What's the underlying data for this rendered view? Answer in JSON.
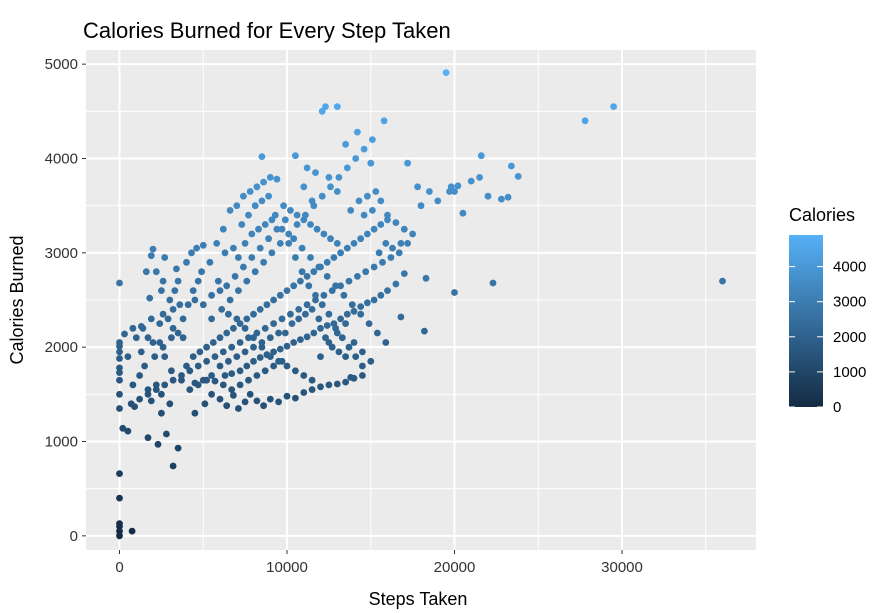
{
  "chart_data": {
    "type": "scatter",
    "title": "Calories Burned for Every Step Taken",
    "xlabel": "Steps Taken",
    "ylabel": "Calories Burned",
    "xlim": [
      -2000,
      38000
    ],
    "ylim": [
      -150,
      5150
    ],
    "x_ticks": [
      0,
      10000,
      20000,
      30000
    ],
    "y_ticks": [
      0,
      1000,
      2000,
      3000,
      4000,
      5000
    ],
    "x_tick_labels": [
      "0",
      "10000",
      "20000",
      "30000"
    ],
    "y_tick_labels": [
      "0",
      "1000",
      "2000",
      "3000",
      "4000",
      "5000"
    ],
    "grid": true,
    "legend": {
      "title": "Calories",
      "placement": "right",
      "range": [
        0,
        4900
      ],
      "ticks": [
        0,
        1000,
        2000,
        3000,
        4000
      ],
      "tick_labels": [
        "0",
        "1000",
        "2000",
        "3000",
        "4000"
      ],
      "color_low": "#132B43",
      "color_high": "#56B1F7"
    },
    "colors": {
      "panel_background": "#EBEBEB",
      "grid": "#FFFFFF"
    },
    "points": [
      [
        0,
        0
      ],
      [
        0,
        50
      ],
      [
        0,
        100
      ],
      [
        0,
        130
      ],
      [
        0,
        400
      ],
      [
        0,
        660
      ],
      [
        0,
        1350
      ],
      [
        0,
        1500
      ],
      [
        0,
        1650
      ],
      [
        0,
        1730
      ],
      [
        0,
        1780
      ],
      [
        0,
        1880
      ],
      [
        0,
        1950
      ],
      [
        0,
        2010
      ],
      [
        0,
        2050
      ],
      [
        0,
        2680
      ],
      [
        750,
        50
      ],
      [
        200,
        1140
      ],
      [
        500,
        1110
      ],
      [
        900,
        1370
      ],
      [
        500,
        1900
      ],
      [
        300,
        2140
      ],
      [
        800,
        2200
      ],
      [
        1300,
        2220
      ],
      [
        1700,
        2100
      ],
      [
        1400,
        2200
      ],
      [
        2000,
        3040
      ],
      [
        1900,
        2970
      ],
      [
        2700,
        2950
      ],
      [
        1800,
        2520
      ],
      [
        1600,
        2800
      ],
      [
        3400,
        2830
      ],
      [
        3500,
        2700
      ],
      [
        2500,
        2600
      ],
      [
        2600,
        2350
      ],
      [
        1900,
        2300
      ],
      [
        3200,
        2400
      ],
      [
        2400,
        2250
      ],
      [
        2000,
        2050
      ],
      [
        2600,
        2000
      ],
      [
        3200,
        2200
      ],
      [
        3800,
        2100
      ],
      [
        2700,
        1900
      ],
      [
        3100,
        1750
      ],
      [
        3700,
        1650
      ],
      [
        2200,
        1600
      ],
      [
        1700,
        1550
      ],
      [
        2500,
        1500
      ],
      [
        3000,
        1400
      ],
      [
        1900,
        1430
      ],
      [
        2500,
        1300
      ],
      [
        1700,
        1040
      ],
      [
        2800,
        1080
      ],
      [
        2300,
        970
      ],
      [
        3500,
        930
      ],
      [
        3200,
        740
      ],
      [
        4500,
        1300
      ],
      [
        5100,
        1400
      ],
      [
        5500,
        1500
      ],
      [
        6000,
        1450
      ],
      [
        6400,
        1380
      ],
      [
        6800,
        1490
      ],
      [
        7100,
        1350
      ],
      [
        7500,
        1420
      ],
      [
        7800,
        1500
      ],
      [
        8200,
        1430
      ],
      [
        8600,
        1380
      ],
      [
        9000,
        1450
      ],
      [
        9500,
        1420
      ],
      [
        10000,
        1480
      ],
      [
        10500,
        1460
      ],
      [
        11000,
        1520
      ],
      [
        11500,
        1550
      ],
      [
        12000,
        1580
      ],
      [
        12500,
        1600
      ],
      [
        13000,
        1610
      ],
      [
        13500,
        1630
      ],
      [
        14000,
        1670
      ],
      [
        14500,
        1700
      ],
      [
        13800,
        1680
      ],
      [
        4200,
        1550
      ],
      [
        4700,
        1600
      ],
      [
        5200,
        1650
      ],
      [
        5700,
        1640
      ],
      [
        6300,
        1700
      ],
      [
        6700,
        1720
      ],
      [
        7200,
        1750
      ],
      [
        7600,
        1800
      ],
      [
        8000,
        1850
      ],
      [
        8400,
        1890
      ],
      [
        8800,
        1920
      ],
      [
        9200,
        1950
      ],
      [
        9600,
        1980
      ],
      [
        10000,
        2010
      ],
      [
        10400,
        2050
      ],
      [
        10800,
        2080
      ],
      [
        11200,
        2110
      ],
      [
        11600,
        2150
      ],
      [
        12000,
        2200
      ],
      [
        12400,
        2230
      ],
      [
        12800,
        2250
      ],
      [
        13200,
        2300
      ],
      [
        13600,
        2350
      ],
      [
        14000,
        2380
      ],
      [
        14400,
        2430
      ],
      [
        14800,
        2470
      ],
      [
        15200,
        2500
      ],
      [
        15600,
        2550
      ],
      [
        16000,
        2600
      ],
      [
        16500,
        2670
      ],
      [
        17000,
        2780
      ],
      [
        16800,
        2320
      ],
      [
        18200,
        2170
      ],
      [
        18300,
        2730
      ],
      [
        20000,
        2580
      ],
      [
        22300,
        2680
      ],
      [
        36000,
        2700
      ],
      [
        4000,
        1800
      ],
      [
        4400,
        1900
      ],
      [
        4800,
        1950
      ],
      [
        5200,
        2000
      ],
      [
        5600,
        2050
      ],
      [
        6000,
        2100
      ],
      [
        6400,
        2150
      ],
      [
        6800,
        2200
      ],
      [
        7200,
        2250
      ],
      [
        7600,
        2300
      ],
      [
        8000,
        2350
      ],
      [
        8400,
        2400
      ],
      [
        8800,
        2450
      ],
      [
        9200,
        2500
      ],
      [
        9600,
        2550
      ],
      [
        10000,
        2600
      ],
      [
        10400,
        2650
      ],
      [
        10800,
        2700
      ],
      [
        11200,
        2750
      ],
      [
        11600,
        2800
      ],
      [
        12000,
        2850
      ],
      [
        12400,
        2900
      ],
      [
        12800,
        2950
      ],
      [
        13200,
        3000
      ],
      [
        13600,
        3050
      ],
      [
        14000,
        3100
      ],
      [
        14400,
        3150
      ],
      [
        14800,
        3200
      ],
      [
        15200,
        3250
      ],
      [
        15600,
        3300
      ],
      [
        16000,
        3350
      ],
      [
        5000,
        3080
      ],
      [
        5800,
        3100
      ],
      [
        6200,
        3250
      ],
      [
        6600,
        3450
      ],
      [
        7000,
        3500
      ],
      [
        7400,
        3600
      ],
      [
        7800,
        3650
      ],
      [
        8200,
        3700
      ],
      [
        8600,
        3750
      ],
      [
        9000,
        3800
      ],
      [
        9400,
        3780
      ],
      [
        9800,
        3500
      ],
      [
        10200,
        3450
      ],
      [
        10600,
        3400
      ],
      [
        11000,
        3350
      ],
      [
        11400,
        3300
      ],
      [
        11800,
        3250
      ],
      [
        12200,
        3200
      ],
      [
        12600,
        3150
      ],
      [
        13000,
        3100
      ],
      [
        8500,
        4020
      ],
      [
        10500,
        4030
      ],
      [
        11200,
        3900
      ],
      [
        11700,
        3850
      ],
      [
        12100,
        4500
      ],
      [
        12300,
        4550
      ],
      [
        13000,
        4550
      ],
      [
        13500,
        4150
      ],
      [
        14200,
        4280
      ],
      [
        15000,
        3950
      ],
      [
        15800,
        4400
      ],
      [
        17200,
        3950
      ],
      [
        19500,
        4910
      ],
      [
        27800,
        4400
      ],
      [
        29500,
        4550
      ],
      [
        21600,
        4030
      ],
      [
        23400,
        3920
      ],
      [
        23800,
        3810
      ],
      [
        22000,
        3600
      ],
      [
        22800,
        3570
      ],
      [
        23200,
        3590
      ],
      [
        20000,
        3650
      ],
      [
        20500,
        3420
      ],
      [
        19000,
        3550
      ],
      [
        19700,
        3650
      ],
      [
        19800,
        3700
      ],
      [
        20200,
        3710
      ],
      [
        21000,
        3760
      ],
      [
        21500,
        3800
      ],
      [
        17800,
        3700
      ],
      [
        18500,
        3650
      ],
      [
        18000,
        3500
      ],
      [
        16000,
        3400
      ],
      [
        16500,
        3320
      ],
      [
        17000,
        3250
      ],
      [
        17500,
        3200
      ],
      [
        17200,
        3100
      ],
      [
        16700,
        3000
      ],
      [
        16200,
        2950
      ],
      [
        15700,
        2900
      ],
      [
        15200,
        2850
      ],
      [
        14700,
        2800
      ],
      [
        14200,
        2750
      ],
      [
        13700,
        2700
      ],
      [
        13200,
        2650
      ],
      [
        12700,
        2600
      ],
      [
        12200,
        2550
      ],
      [
        11700,
        2500
      ],
      [
        11200,
        2450
      ],
      [
        10700,
        2400
      ],
      [
        10200,
        2350
      ],
      [
        9700,
        2300
      ],
      [
        9200,
        2250
      ],
      [
        8700,
        2200
      ],
      [
        8200,
        2150
      ],
      [
        7700,
        2100
      ],
      [
        7200,
        2050
      ],
      [
        6700,
        2000
      ],
      [
        6200,
        1950
      ],
      [
        5700,
        1900
      ],
      [
        5200,
        1850
      ],
      [
        4700,
        1800
      ],
      [
        4200,
        1750
      ],
      [
        3700,
        1700
      ],
      [
        3200,
        1650
      ],
      [
        2700,
        1600
      ],
      [
        2200,
        1550
      ],
      [
        1700,
        1500
      ],
      [
        1200,
        1450
      ],
      [
        700,
        1400
      ],
      [
        5500,
        2300
      ],
      [
        6100,
        2400
      ],
      [
        6600,
        2500
      ],
      [
        7100,
        2600
      ],
      [
        7600,
        2700
      ],
      [
        8100,
        2800
      ],
      [
        8600,
        2900
      ],
      [
        9100,
        3000
      ],
      [
        9600,
        3100
      ],
      [
        10100,
        3200
      ],
      [
        10600,
        3300
      ],
      [
        11100,
        3400
      ],
      [
        11600,
        3500
      ],
      [
        12100,
        3600
      ],
      [
        12600,
        3700
      ],
      [
        13100,
        3800
      ],
      [
        13600,
        3900
      ],
      [
        14100,
        4000
      ],
      [
        14600,
        4100
      ],
      [
        15100,
        4200
      ],
      [
        4900,
        2800
      ],
      [
        5400,
        2900
      ],
      [
        5900,
        2700
      ],
      [
        6400,
        2650
      ],
      [
        6900,
        2750
      ],
      [
        7400,
        2850
      ],
      [
        7900,
        2950
      ],
      [
        8400,
        3050
      ],
      [
        8900,
        3150
      ],
      [
        9400,
        3250
      ],
      [
        9900,
        3350
      ],
      [
        10400,
        3150
      ],
      [
        10900,
        3050
      ],
      [
        11400,
        2950
      ],
      [
        11900,
        2850
      ],
      [
        12400,
        2750
      ],
      [
        12900,
        2650
      ],
      [
        13400,
        2550
      ],
      [
        13900,
        2450
      ],
      [
        14400,
        2350
      ],
      [
        14900,
        2250
      ],
      [
        15400,
        2150
      ],
      [
        15900,
        2050
      ],
      [
        4500,
        2500
      ],
      [
        5000,
        2450
      ],
      [
        5500,
        2550
      ],
      [
        6000,
        2600
      ],
      [
        6500,
        2350
      ],
      [
        7000,
        2300
      ],
      [
        7500,
        2200
      ],
      [
        8000,
        2100
      ],
      [
        8500,
        2000
      ],
      [
        9000,
        1900
      ],
      [
        9500,
        1850
      ],
      [
        10000,
        1800
      ],
      [
        10500,
        1750
      ],
      [
        11000,
        1700
      ],
      [
        11500,
        1650
      ],
      [
        12000,
        1900
      ],
      [
        12500,
        2050
      ],
      [
        13000,
        2150
      ],
      [
        13500,
        2250
      ],
      [
        14000,
        2050
      ],
      [
        14500,
        1950
      ],
      [
        15000,
        1850
      ],
      [
        3500,
        2150
      ],
      [
        3800,
        2300
      ],
      [
        4100,
        2450
      ],
      [
        4400,
        2600
      ],
      [
        4700,
        2700
      ],
      [
        3000,
        2500
      ],
      [
        3300,
        2600
      ],
      [
        3600,
        2450
      ],
      [
        2900,
        2300
      ],
      [
        3100,
        2100
      ],
      [
        2400,
        2050
      ],
      [
        2100,
        1900
      ],
      [
        1500,
        1800
      ],
      [
        1300,
        1950
      ],
      [
        1000,
        2100
      ],
      [
        1200,
        1700
      ],
      [
        800,
        1600
      ],
      [
        2600,
        2700
      ],
      [
        2200,
        2800
      ],
      [
        4000,
        2900
      ],
      [
        4300,
        3000
      ],
      [
        4600,
        3050
      ],
      [
        7300,
        3300
      ],
      [
        7700,
        3400
      ],
      [
        8100,
        3500
      ],
      [
        8500,
        3550
      ],
      [
        8900,
        3600
      ],
      [
        9300,
        3400
      ],
      [
        9700,
        3250
      ],
      [
        10100,
        3100
      ],
      [
        10500,
        2950
      ],
      [
        10900,
        2800
      ],
      [
        11300,
        2650
      ],
      [
        11700,
        2550
      ],
      [
        12100,
        2450
      ],
      [
        12500,
        2350
      ],
      [
        12900,
        2200
      ],
      [
        13300,
        2100
      ],
      [
        13700,
        2000
      ],
      [
        14100,
        1900
      ],
      [
        14500,
        1800
      ],
      [
        9900,
        2150
      ],
      [
        10300,
        2250
      ],
      [
        10700,
        2300
      ],
      [
        11100,
        2350
      ],
      [
        11500,
        2400
      ],
      [
        11900,
        2300
      ],
      [
        12300,
        2100
      ],
      [
        12700,
        2000
      ],
      [
        13100,
        1950
      ],
      [
        13500,
        1900
      ],
      [
        6000,
        1800
      ],
      [
        6500,
        1850
      ],
      [
        7000,
        1900
      ],
      [
        7500,
        1950
      ],
      [
        8000,
        2000
      ],
      [
        8500,
        2050
      ],
      [
        9000,
        2100
      ],
      [
        9500,
        2150
      ],
      [
        5500,
        1700
      ],
      [
        5000,
        1650
      ],
      [
        4500,
        1620
      ],
      [
        6200,
        1600
      ],
      [
        6700,
        1550
      ],
      [
        7200,
        1600
      ],
      [
        7700,
        1650
      ],
      [
        8200,
        1700
      ],
      [
        8700,
        1750
      ],
      [
        9200,
        1800
      ],
      [
        9700,
        1850
      ],
      [
        11000,
        3700
      ],
      [
        11500,
        3550
      ],
      [
        12500,
        3800
      ],
      [
        13000,
        3650
      ],
      [
        13800,
        3450
      ],
      [
        14300,
        3550
      ],
      [
        14800,
        3600
      ],
      [
        15300,
        3650
      ],
      [
        15600,
        3550
      ],
      [
        16300,
        3050
      ],
      [
        16800,
        3100
      ],
      [
        14600,
        3400
      ],
      [
        15100,
        3450
      ],
      [
        15500,
        3000
      ],
      [
        15900,
        3100
      ],
      [
        6300,
        3000
      ],
      [
        6800,
        3050
      ],
      [
        7100,
        2950
      ],
      [
        7500,
        3100
      ],
      [
        7900,
        3200
      ],
      [
        8300,
        3250
      ],
      [
        8700,
        3300
      ],
      [
        9100,
        3350
      ]
    ]
  }
}
